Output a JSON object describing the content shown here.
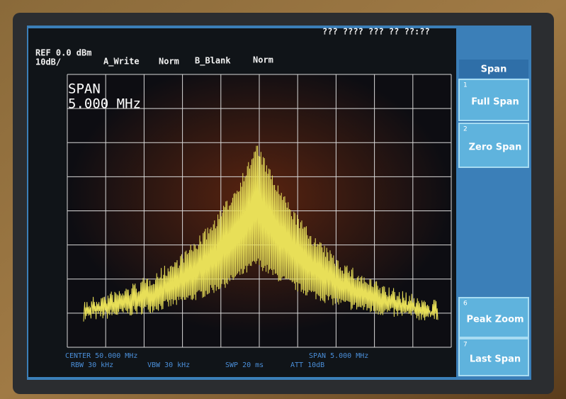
{
  "status": {
    "clock": "??? ???? ??? ?? ??:??"
  },
  "header": {
    "ref": "REF 0.0 dBm",
    "scale": "10dB/",
    "trace_a": "A_Write",
    "trace_a_mode": "Norm",
    "trace_b": "B_Blank",
    "trace_b_mode": "Norm"
  },
  "overlay": {
    "label": "SPAN",
    "value": "5.000 MHz"
  },
  "softkeys": {
    "title": "Span",
    "keys": [
      {
        "number": "1",
        "label": "Full Span"
      },
      {
        "number": "2",
        "label": "Zero Span"
      },
      {
        "number": "6",
        "label": "Peak Zoom"
      },
      {
        "number": "7",
        "label": "Last Span"
      }
    ]
  },
  "footer": {
    "center": "CENTER 50.000 MHz",
    "span": "SPAN 5.000 MHz",
    "rbw": "RBW 30 kHz",
    "vbw": "VBW 30 kHz",
    "swp": "SWP 20 ms",
    "att": "ATT 10dB"
  }
}
